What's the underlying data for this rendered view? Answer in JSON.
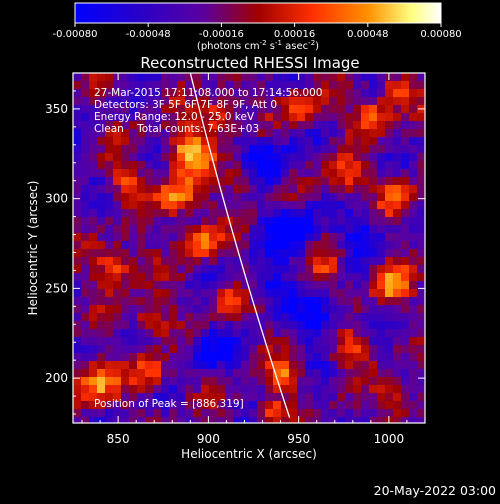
{
  "chart_data": {
    "type": "heatmap",
    "title": "Reconstructed RHESSI Image",
    "xlabel": "Heliocentric X (arcsec)",
    "ylabel": "Heliocentric Y (arcsec)",
    "xlim": [
      825,
      1020
    ],
    "ylim": [
      175,
      370
    ],
    "x_ticks": [
      850,
      900,
      950,
      1000
    ],
    "y_ticks": [
      200,
      250,
      300,
      350
    ],
    "colorbar": {
      "range": [
        -0.0008,
        0.0008
      ],
      "tick_labels": [
        "-0.00080",
        "-0.00048",
        "-0.00016",
        "0.00016",
        "0.00048",
        "0.00080"
      ],
      "unit_label_parts": [
        "(photons cm",
        "-2",
        " s",
        "-1",
        " asec",
        "-2",
        ")"
      ],
      "colors": [
        "#0000ff",
        "#2a00c8",
        "#5a00a0",
        "#a00000",
        "#ff3000",
        "#ff9000",
        "#ffff80",
        "#ffffff"
      ]
    },
    "annotations": {
      "time_range": "27-Mar-2015 17:11:08.000 to 17:14:56.000",
      "detectors": "Detectors: 3F 5F 6F 7F 8F 9F, Att 0",
      "energy_range": "Energy Range: 12.0 - 25.0 keV",
      "clean_counts": "Clean    Total counts: 7.63E+03",
      "peak_position": "Position of Peak = [886,319]"
    },
    "limb_line": {
      "points": [
        [
          890,
          370
        ],
        [
          945,
          178
        ]
      ]
    }
  },
  "footer": {
    "date": "20-May-2022 03:00"
  }
}
